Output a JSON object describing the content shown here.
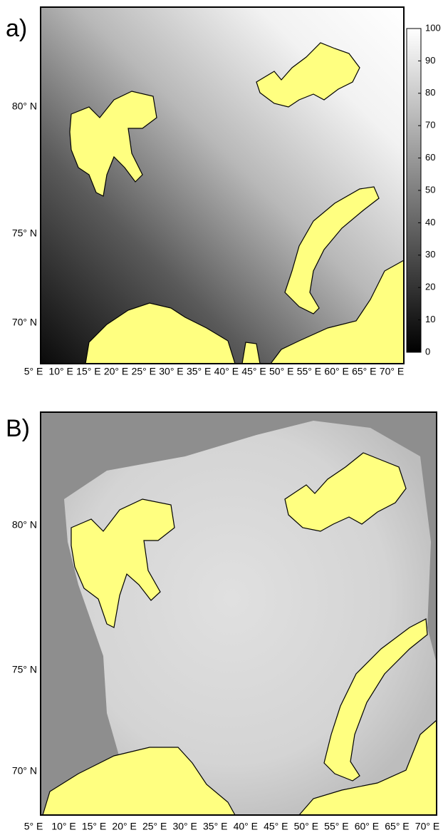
{
  "panel_a": {
    "label": "a)",
    "latitude_labels": [
      "80° N",
      "75° N",
      "70° N"
    ],
    "longitude_labels": [
      "5° E",
      "10° E",
      "15° E",
      "20° E",
      "25° E",
      "30° E",
      "35° E",
      "40° E",
      "45° E",
      "50° E",
      "55° E",
      "60° E",
      "65° E",
      "70° E"
    ],
    "colorbar": {
      "lim": [
        0,
        100
      ],
      "ticks": [
        0,
        10,
        20,
        30,
        40,
        50,
        60,
        70,
        80,
        90,
        100
      ]
    }
  },
  "panel_b": {
    "label": "B)",
    "latitude_labels": [
      "80° N",
      "75° N",
      "70° N"
    ],
    "longitude_labels": [
      "5° E",
      "10° E",
      "15° E",
      "20° E",
      "25° E",
      "30° E",
      "35° E",
      "40° E",
      "45° E",
      "50° E",
      "55° E",
      "60° E",
      "65° E",
      "70° E"
    ]
  }
}
